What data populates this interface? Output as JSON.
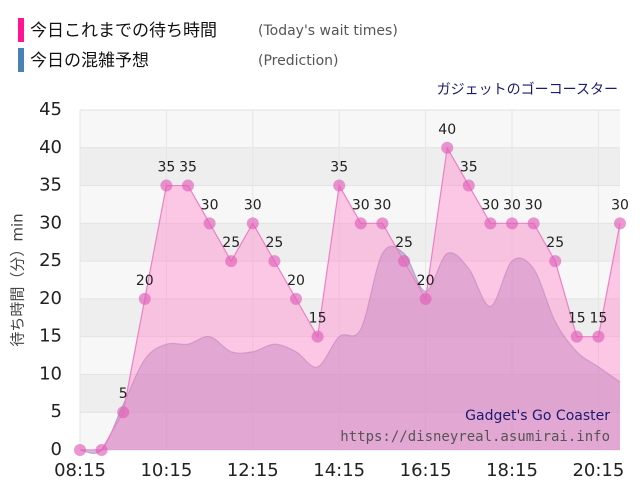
{
  "chart_data": {
    "type": "area",
    "title": "ガジェットのゴーコースター",
    "ylabel": "待ち時間（分）min",
    "watermark": "Gadget's Go Coaster",
    "source": "https://disneyreal.asumirai.info",
    "categories": [
      "08:15",
      null,
      null,
      null,
      "10:15",
      null,
      null,
      null,
      "12:15",
      null,
      null,
      null,
      "14:15",
      null,
      null,
      null,
      "16:15",
      null,
      null,
      null,
      "18:15",
      null,
      null,
      null,
      "20:15",
      null
    ],
    "series": [
      {
        "name": "今日これまでの待ち時間",
        "note_en": "(Today's wait times)",
        "color": "#e060b8",
        "values": [
          0,
          0,
          5,
          20,
          35,
          35,
          30,
          25,
          30,
          25,
          20,
          15,
          35,
          30,
          30,
          25,
          20,
          40,
          35,
          30,
          30,
          30,
          25,
          15,
          15,
          30
        ],
        "value_labels": [
          null,
          null,
          "5",
          "20",
          "35",
          "35",
          "30",
          "25",
          "30",
          "25",
          "20",
          "15",
          "35",
          "30",
          "30",
          "25",
          "20",
          "40",
          "35",
          "30",
          "30",
          "30",
          "25",
          "15",
          "15",
          "30"
        ]
      },
      {
        "name": "今日の混雑予想",
        "note_en": "(Prediction)",
        "color": "#4682b4",
        "values": [
          0,
          0,
          6,
          12,
          14,
          14,
          15,
          13,
          13,
          14,
          13,
          11,
          15,
          16,
          26,
          26,
          21,
          26,
          24,
          19,
          25,
          24,
          17,
          13,
          11,
          9
        ]
      }
    ],
    "ylim": [
      0,
      45
    ],
    "yticks": [
      0,
      5,
      10,
      15,
      20,
      25,
      30,
      35,
      40,
      45
    ]
  }
}
